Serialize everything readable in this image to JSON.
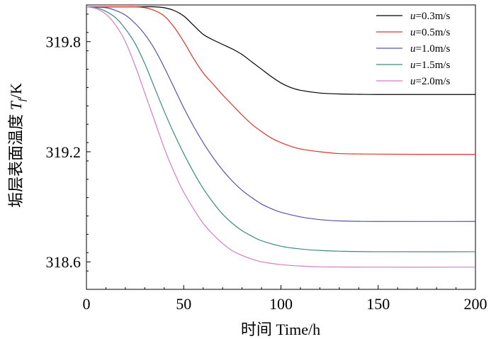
{
  "chart_data": {
    "type": "line",
    "title": "",
    "xlabel": "时间 Time/h",
    "ylabel": "垢层表面温度 T_f/K",
    "ylabel_main": "垢层表面温度 ",
    "ylabel_var": "T",
    "ylabel_sub": "f",
    "ylabel_unit": "/K",
    "xlim": [
      0,
      200
    ],
    "ylim": [
      318.45,
      320.0
    ],
    "xticks": [
      0,
      50,
      100,
      150,
      200
    ],
    "xtick_labels": [
      "0",
      "50",
      "100",
      "150",
      "200"
    ],
    "yticks": [
      318.6,
      319.2,
      319.8
    ],
    "ytick_labels": [
      "318.6",
      "319.2",
      "319.8"
    ],
    "grid": false,
    "legend_position": "top-right",
    "series": [
      {
        "name": "u=0.3m/s",
        "var": "u",
        "rest": "=0.3m/s",
        "color": "#000000",
        "x": [
          0,
          20,
          30,
          35,
          40,
          45,
          50,
          55,
          60,
          65,
          70,
          75,
          80,
          85,
          90,
          95,
          100,
          105,
          110,
          120,
          130,
          140,
          150,
          170,
          200
        ],
        "y": [
          319.99,
          319.99,
          319.99,
          319.99,
          319.985,
          319.97,
          319.94,
          319.89,
          319.84,
          319.81,
          319.785,
          319.76,
          319.73,
          319.69,
          319.65,
          319.61,
          319.575,
          319.55,
          319.535,
          319.52,
          319.515,
          319.513,
          319.512,
          319.512,
          319.512
        ]
      },
      {
        "name": "u=0.5m/s",
        "var": "u",
        "rest": "=0.5m/s",
        "color": "#e0322d",
        "x": [
          0,
          20,
          25,
          30,
          35,
          40,
          45,
          50,
          55,
          60,
          65,
          70,
          75,
          80,
          85,
          90,
          95,
          100,
          105,
          110,
          120,
          130,
          140,
          150,
          170,
          200
        ],
        "y": [
          319.99,
          319.99,
          319.99,
          319.985,
          319.97,
          319.94,
          319.88,
          319.8,
          319.71,
          319.63,
          319.57,
          319.51,
          319.455,
          319.4,
          319.35,
          319.31,
          319.275,
          319.25,
          319.23,
          319.215,
          319.2,
          319.19,
          319.188,
          319.187,
          319.186,
          319.186
        ]
      },
      {
        "name": "u=1.0m/s",
        "var": "u",
        "rest": "=1.0m/s",
        "color": "#5454a6",
        "x": [
          0,
          10,
          15,
          20,
          25,
          30,
          35,
          40,
          45,
          50,
          55,
          60,
          65,
          70,
          75,
          80,
          85,
          90,
          95,
          100,
          110,
          120,
          130,
          150,
          200
        ],
        "y": [
          319.99,
          319.985,
          319.97,
          319.945,
          319.9,
          319.84,
          319.76,
          319.66,
          319.55,
          319.44,
          319.34,
          319.25,
          319.17,
          319.1,
          319.04,
          318.99,
          318.95,
          318.915,
          318.89,
          318.87,
          318.845,
          318.83,
          318.823,
          318.82,
          318.82
        ]
      },
      {
        "name": "u=1.5m/s",
        "var": "u",
        "rest": "=1.5m/s",
        "color": "#3a8a83",
        "x": [
          0,
          5,
          10,
          15,
          20,
          25,
          30,
          35,
          40,
          45,
          50,
          55,
          60,
          65,
          70,
          75,
          80,
          85,
          90,
          100,
          110,
          120,
          130,
          150,
          200
        ],
        "y": [
          319.99,
          319.985,
          319.965,
          319.93,
          319.87,
          319.79,
          319.68,
          319.55,
          319.42,
          319.3,
          319.19,
          319.09,
          319.0,
          318.925,
          318.86,
          318.81,
          318.77,
          318.74,
          318.715,
          318.685,
          318.67,
          318.662,
          318.658,
          318.655,
          318.655
        ]
      },
      {
        "name": "u=2.0m/s",
        "var": "u",
        "rest": "=2.0m/s",
        "color": "#d57cc8",
        "x": [
          0,
          5,
          10,
          15,
          20,
          25,
          30,
          35,
          40,
          45,
          50,
          55,
          60,
          65,
          70,
          75,
          80,
          85,
          90,
          100,
          110,
          120,
          130,
          150,
          200
        ],
        "y": [
          319.99,
          319.98,
          319.95,
          319.89,
          319.8,
          319.67,
          319.52,
          319.37,
          319.22,
          319.09,
          318.98,
          318.89,
          318.81,
          318.75,
          318.7,
          318.66,
          318.635,
          318.615,
          318.6,
          318.585,
          318.577,
          318.573,
          318.572,
          318.571,
          318.571
        ]
      }
    ]
  }
}
